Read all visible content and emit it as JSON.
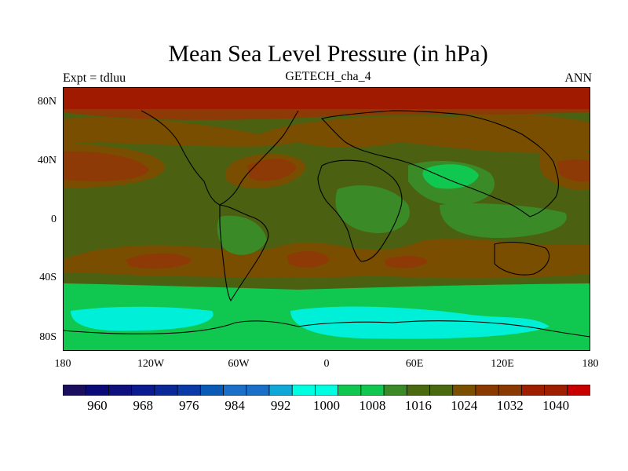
{
  "header": {
    "title": "Mean Sea Level Pressure (in hPa)",
    "subtitle": "GETECH_cha_4",
    "left_label": "Expt = tdluu",
    "right_label": "ANN"
  },
  "axes": {
    "lat_labels": [
      "80N",
      "40N",
      "0",
      "40S",
      "80S"
    ],
    "lon_labels": [
      "180",
      "120W",
      "60W",
      "0",
      "60E",
      "120E",
      "180"
    ]
  },
  "colorbar": {
    "colors": [
      "#1c0e5e",
      "#0a0a78",
      "#0e1080",
      "#0a1a90",
      "#0a2898",
      "#0a3aa8",
      "#0a5ab8",
      "#1a70c8",
      "#1a70c8",
      "#10a8d8",
      "#00ffe0",
      "#00ffe0",
      "#10c850",
      "#10c850",
      "#3a8a28",
      "#4a6a10",
      "#4a6a10",
      "#7a5000",
      "#8a3a00",
      "#8a3a00",
      "#a01e00",
      "#a01e00",
      "#c80000"
    ],
    "labels": [
      "960",
      "968",
      "976",
      "984",
      "992",
      "1000",
      "1008",
      "1016",
      "1024",
      "1032",
      "1040"
    ]
  },
  "palette": {
    "olive": "#4c6012",
    "dark_red": "#8e3a06",
    "red": "#a01a00",
    "brown": "#7a4e00",
    "green": "#3a8a28",
    "light_green": "#10c850",
    "cyan": "#00efd8"
  }
}
